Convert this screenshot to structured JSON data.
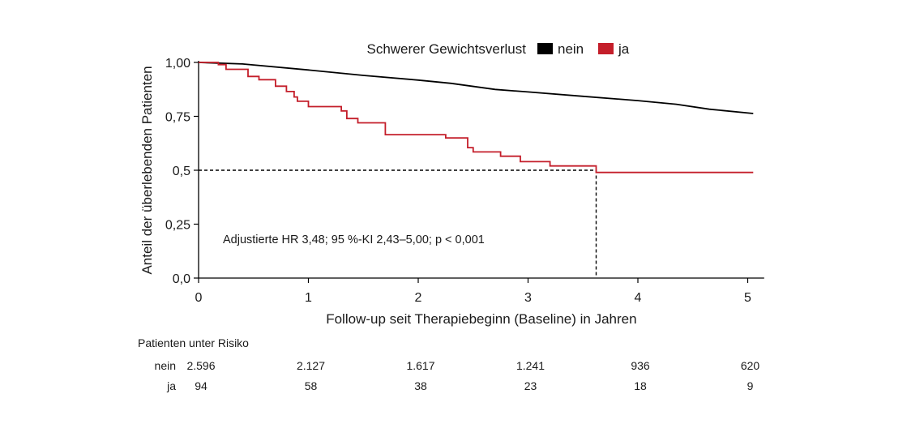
{
  "chart_data": {
    "type": "line",
    "title": "",
    "xlabel": "Follow-up seit Therapiebeginn (Baseline) in Jahren",
    "ylabel": "Anteil der überlebenden Patienten",
    "xlim": [
      0,
      5.15
    ],
    "ylim": [
      0,
      1.0
    ],
    "x_ticks": [
      0,
      1,
      2,
      3,
      4,
      5
    ],
    "x_tick_labels": [
      "0",
      "1",
      "2",
      "3",
      "4",
      "5"
    ],
    "y_ticks": [
      0,
      0.25,
      0.5,
      0.75,
      1.0
    ],
    "y_tick_labels": [
      "0,0",
      "0,25",
      "0,5",
      "0,75",
      "1,00"
    ],
    "grid": false,
    "legend": {
      "title": "Schwerer Gewichtsverlust",
      "placement": "top",
      "entries": [
        {
          "label": "nein",
          "color": "#000000"
        },
        {
          "label": "ja",
          "color": "#c41e2a"
        }
      ]
    },
    "series": [
      {
        "name": "nein",
        "color": "#000000",
        "step": false,
        "points": [
          [
            0,
            1.0
          ],
          [
            0.4,
            0.993
          ],
          [
            1.0,
            0.965
          ],
          [
            1.5,
            0.94
          ],
          [
            2.0,
            0.918
          ],
          [
            2.3,
            0.903
          ],
          [
            2.7,
            0.875
          ],
          [
            3.0,
            0.863
          ],
          [
            3.5,
            0.843
          ],
          [
            4.0,
            0.823
          ],
          [
            4.35,
            0.806
          ],
          [
            4.65,
            0.783
          ],
          [
            5.05,
            0.763
          ]
        ]
      },
      {
        "name": "ja",
        "color": "#c41e2a",
        "step": true,
        "points": [
          [
            0,
            1.0
          ],
          [
            0.18,
            0.99
          ],
          [
            0.25,
            0.968
          ],
          [
            0.42,
            0.968
          ],
          [
            0.45,
            0.935
          ],
          [
            0.53,
            0.935
          ],
          [
            0.55,
            0.92
          ],
          [
            0.65,
            0.92
          ],
          [
            0.7,
            0.89
          ],
          [
            0.8,
            0.865
          ],
          [
            0.87,
            0.84
          ],
          [
            0.9,
            0.82
          ],
          [
            1.0,
            0.795
          ],
          [
            1.25,
            0.795
          ],
          [
            1.3,
            0.775
          ],
          [
            1.35,
            0.74
          ],
          [
            1.45,
            0.72
          ],
          [
            1.6,
            0.72
          ],
          [
            1.7,
            0.665
          ],
          [
            2.2,
            0.665
          ],
          [
            2.25,
            0.65
          ],
          [
            2.4,
            0.65
          ],
          [
            2.45,
            0.605
          ],
          [
            2.5,
            0.585
          ],
          [
            2.7,
            0.585
          ],
          [
            2.75,
            0.565
          ],
          [
            2.88,
            0.565
          ],
          [
            2.93,
            0.54
          ],
          [
            3.15,
            0.54
          ],
          [
            3.2,
            0.52
          ],
          [
            3.55,
            0.52
          ],
          [
            3.62,
            0.49
          ],
          [
            5.05,
            0.49
          ]
        ]
      }
    ],
    "median_reference": {
      "x": 3.62,
      "y": 0.5,
      "style": "dashed"
    },
    "annotation": "Adjustierte HR 3,48; 95 %-KI 2,43–5,00; p < 0,001",
    "risk_table": {
      "title": "Patienten unter Risiko",
      "rows": [
        {
          "label": "nein",
          "values": [
            "2.596",
            "2.127",
            "1.617",
            "1.241",
            "936",
            "620"
          ]
        },
        {
          "label": "ja",
          "values": [
            "94",
            "58",
            "38",
            "23",
            "18",
            "9"
          ]
        }
      ]
    }
  }
}
